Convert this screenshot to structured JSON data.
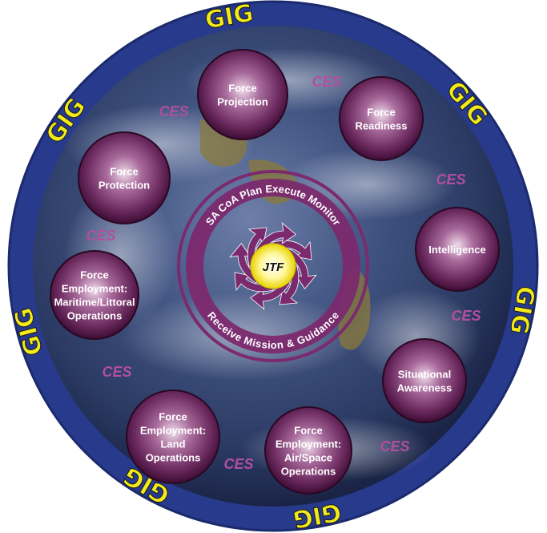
{
  "gig_label": "GIG",
  "ces_label": "CES",
  "center": {
    "label": "JTF",
    "ring_words": [
      "SA",
      "CoA",
      "Plan",
      "Execute",
      "Monitor"
    ],
    "ring_bottom": "Receive Mission & Guidance"
  },
  "nodes": [
    {
      "id": "force-projection",
      "lines": [
        "Force",
        "Projection"
      ]
    },
    {
      "id": "force-readiness",
      "lines": [
        "Force",
        "Readiness"
      ]
    },
    {
      "id": "intelligence",
      "lines": [
        "Intelligence"
      ]
    },
    {
      "id": "situational-awareness",
      "lines": [
        "Situational",
        "Awareness"
      ]
    },
    {
      "id": "force-employment-air-space",
      "lines": [
        "Force",
        "Employment:",
        "Air/Space",
        "Operations"
      ]
    },
    {
      "id": "force-employment-land",
      "lines": [
        "Force",
        "Employment:",
        "Land",
        "Operations"
      ]
    },
    {
      "id": "force-employment-maritime",
      "lines": [
        "Force",
        "Employment:",
        "Maritime/Littoral",
        "Operations"
      ]
    },
    {
      "id": "force-protection",
      "lines": [
        "Force",
        "Protection"
      ]
    }
  ],
  "colors": {
    "outer_ring": "#283a8c",
    "gig_text": "#f2ea1a",
    "node_dark": "#4a0f3f",
    "node_light": "#e9d2e5",
    "ces_text": "#b04fa0",
    "inner_ring": "#7b2a6e",
    "jtf_center": "#fff78a"
  }
}
